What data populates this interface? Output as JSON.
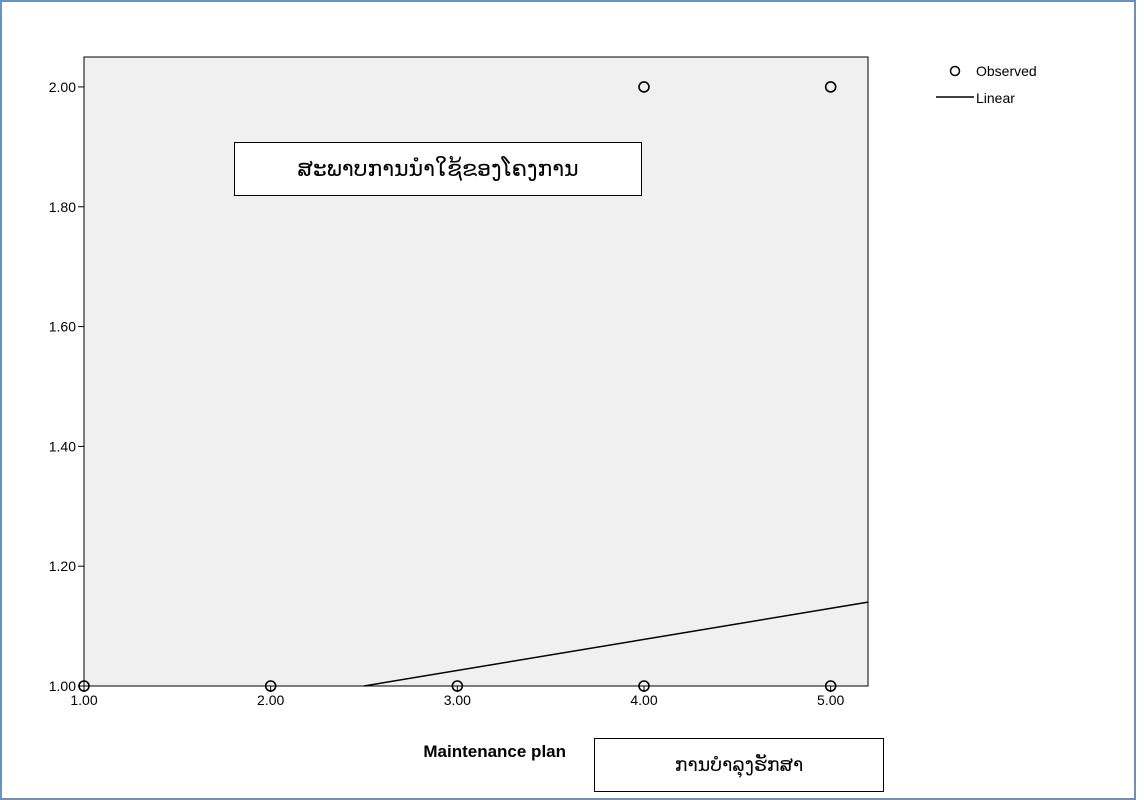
{
  "chart_data": {
    "type": "scatter",
    "xlabel": "Maintenance plan",
    "xlim": [
      1.0,
      5.2
    ],
    "ylim": [
      1.0,
      2.05
    ],
    "x_ticks": [
      "1.00",
      "2.00",
      "3.00",
      "4.00",
      "5.00"
    ],
    "y_ticks": [
      "1.00",
      "1.20",
      "1.40",
      "1.60",
      "1.80",
      "2.00"
    ],
    "grid": false,
    "legend_position": "top-right",
    "series": [
      {
        "name": "Observed",
        "kind": "points",
        "points": [
          {
            "x": 1,
            "y": 1
          },
          {
            "x": 2,
            "y": 1
          },
          {
            "x": 3,
            "y": 1
          },
          {
            "x": 4,
            "y": 1
          },
          {
            "x": 5,
            "y": 1
          },
          {
            "x": 4,
            "y": 2
          },
          {
            "x": 5,
            "y": 2
          }
        ]
      },
      {
        "name": "Linear",
        "kind": "line",
        "points": [
          {
            "x": 2.5,
            "y": 1.0
          },
          {
            "x": 5.2,
            "y": 1.14
          }
        ]
      }
    ],
    "annotations": {
      "top": "ສະພາບການນຳໃຊ້ຂອງໂຄງການ",
      "bottom": "ການບຳລຸງຮັກສາ"
    },
    "colors": {
      "plot_background": "#f0f0f0",
      "marker_stroke": "#000000",
      "line": "#000000"
    }
  }
}
